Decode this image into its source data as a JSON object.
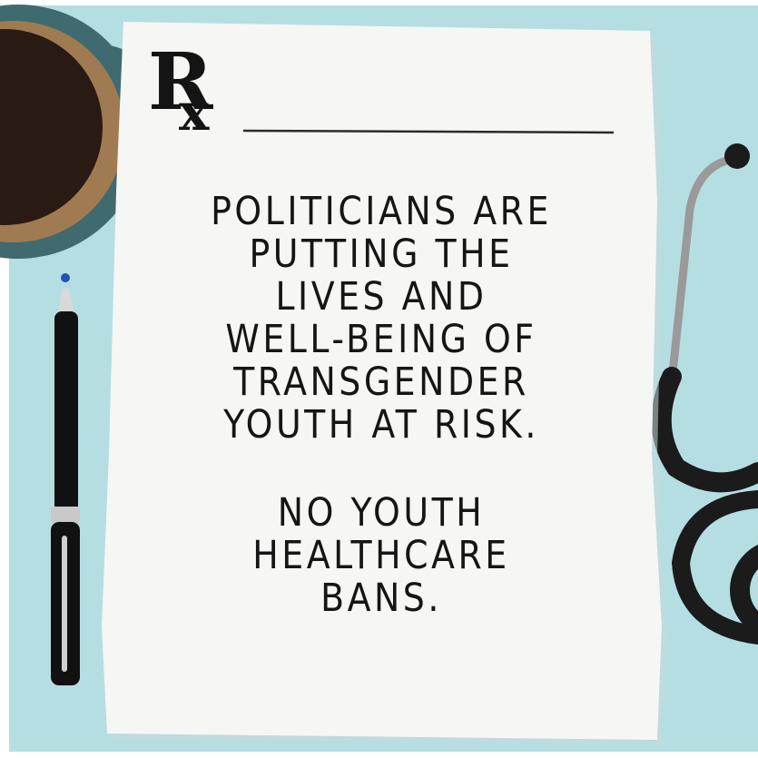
{
  "prescription": {
    "rx_letter": "R",
    "rx_sub": "x",
    "message_lines": [
      "POLITICIANS ARE",
      "PUTTING THE",
      "LIVES AND",
      "WELL-BEING OF",
      "TRANSGENDER",
      "YOUTH AT RISK."
    ],
    "call_lines": [
      "NO YOUTH",
      "HEALTHCARE",
      "BANS."
    ]
  },
  "colors": {
    "background": "#b5dee2",
    "paper": "#f6f6f4",
    "ink": "#141414",
    "mug": "#3f6a70",
    "coffee": "#2a1a14",
    "crema": "#a07b52",
    "stethoscope": "#1b1b1b",
    "pen_band": "#c9c9c9",
    "pen_tip": "#2450b8"
  },
  "objects": [
    "coffee-mug",
    "pen",
    "stethoscope",
    "prescription-pad"
  ]
}
